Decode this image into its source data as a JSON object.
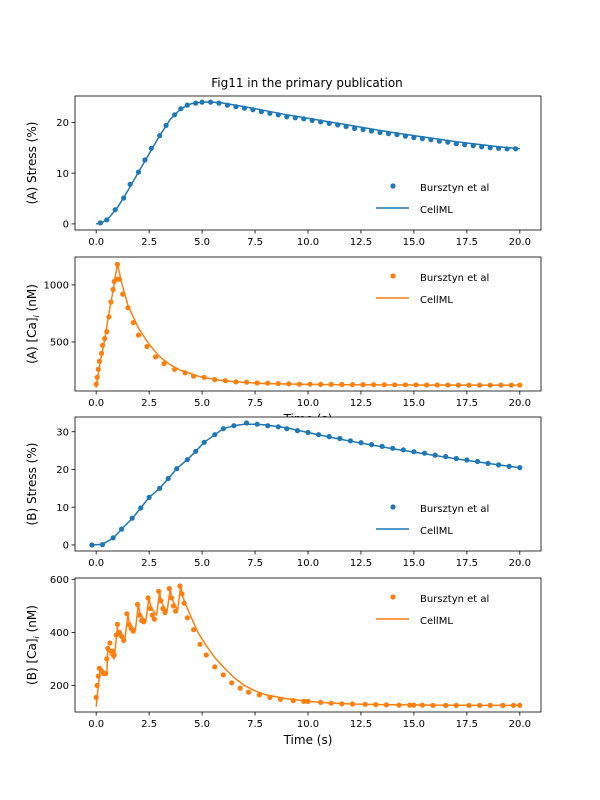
{
  "title": "Fig11 in the primary publication",
  "colors": {
    "blue": "#1f77b4",
    "orange": "#ff7f0e"
  },
  "chart_data": [
    {
      "type": "line",
      "id": "A-stress",
      "title": "Fig11 in the primary publication",
      "ylabel": "(A) Stress (%)",
      "xlabel": "",
      "xlim": [
        -1.0,
        21.0
      ],
      "ylim": [
        -1.2,
        25.2
      ],
      "xticks": [
        0.0,
        2.5,
        5.0,
        7.5,
        10.0,
        12.5,
        15.0,
        17.5,
        20.0
      ],
      "xtick_labels": [
        "0.0",
        "2.5",
        "5.0",
        "7.5",
        "10.0",
        "12.5",
        "15.0",
        "17.5",
        "20.0"
      ],
      "yticks": [
        0,
        10,
        20
      ],
      "ytick_labels": [
        "0",
        "10",
        "20"
      ],
      "color": "blue",
      "legend": {
        "position": "lower-right",
        "entries": [
          "Bursztyn et al",
          "CellML"
        ]
      },
      "series": [
        {
          "name": "CellML",
          "kind": "line",
          "x": [
            0.0,
            0.3,
            0.6,
            1.0,
            1.5,
            2.0,
            2.5,
            3.0,
            3.5,
            4.0,
            4.5,
            5.0,
            5.5,
            6.0,
            7.0,
            8.0,
            9.0,
            10.0,
            11.0,
            12.0,
            13.0,
            14.0,
            15.0,
            16.0,
            17.0,
            18.0,
            19.0,
            20.0
          ],
          "y": [
            0.0,
            0.3,
            1.2,
            3.2,
            6.6,
            10.2,
            13.8,
            17.4,
            20.6,
            22.7,
            23.7,
            24.0,
            24.0,
            23.8,
            23.1,
            22.3,
            21.5,
            20.8,
            20.1,
            19.4,
            18.7,
            18.0,
            17.4,
            16.8,
            16.2,
            15.7,
            15.2,
            14.8
          ]
        },
        {
          "name": "Bursztyn et al",
          "kind": "scatter",
          "x": [
            0.2,
            0.5,
            0.9,
            1.3,
            1.6,
            2.0,
            2.3,
            2.6,
            3.0,
            3.3,
            3.7,
            4.0,
            4.3,
            4.7,
            5.0,
            5.4,
            5.8,
            6.2,
            6.6,
            7.0,
            7.4,
            7.8,
            8.2,
            8.6,
            9.0,
            9.4,
            9.8,
            10.2,
            10.6,
            11.0,
            11.4,
            11.8,
            12.2,
            12.6,
            13.0,
            13.4,
            13.8,
            14.2,
            14.6,
            15.0,
            15.4,
            15.8,
            16.2,
            16.6,
            17.0,
            17.4,
            17.8,
            18.2,
            18.6,
            19.0,
            19.4,
            19.8
          ],
          "y": [
            0.2,
            0.8,
            2.8,
            5.1,
            7.8,
            10.2,
            12.6,
            14.9,
            17.4,
            19.4,
            21.5,
            22.7,
            23.4,
            23.8,
            24.0,
            24.0,
            23.8,
            23.4,
            23.1,
            22.8,
            22.5,
            22.1,
            21.8,
            21.5,
            21.1,
            20.9,
            20.7,
            20.4,
            20.1,
            19.8,
            19.5,
            19.2,
            18.8,
            18.6,
            18.3,
            18.0,
            17.8,
            17.6,
            17.3,
            17.0,
            16.8,
            16.6,
            16.3,
            16.1,
            15.8,
            15.6,
            15.4,
            15.2,
            15.0,
            14.9,
            14.8,
            14.8
          ]
        }
      ]
    },
    {
      "type": "line",
      "id": "A-ca",
      "ylabel": "(A) [Ca]_i (nM)",
      "xlabel": "Time (s)",
      "xlim": [
        -1.0,
        21.0
      ],
      "ylim": [
        70,
        1245
      ],
      "xticks": [
        0.0,
        2.5,
        5.0,
        7.5,
        10.0,
        12.5,
        15.0,
        17.5,
        20.0
      ],
      "xtick_labels": [
        "0.0",
        "2.5",
        "5.0",
        "7.5",
        "10.0",
        "12.5",
        "15.0",
        "17.5",
        "20.0"
      ],
      "yticks": [
        500,
        1000
      ],
      "ytick_labels": [
        "500",
        "1000"
      ],
      "color": "orange",
      "legend": {
        "position": "upper-right",
        "entries": [
          "Bursztyn et al",
          "CellML"
        ]
      },
      "series": [
        {
          "name": "CellML",
          "kind": "line",
          "x": [
            0.0,
            0.05,
            0.2,
            0.4,
            0.6,
            0.8,
            1.0,
            1.2,
            1.5,
            2.0,
            2.5,
            3.0,
            3.5,
            4.0,
            5.0,
            6.0,
            7.0,
            8.0,
            10.0,
            12.0,
            15.0,
            18.0,
            20.0
          ],
          "y": [
            100,
            160,
            330,
            520,
            750,
            950,
            1185,
            1020,
            820,
            620,
            480,
            370,
            300,
            250,
            190,
            160,
            145,
            135,
            128,
            125,
            123,
            122,
            122
          ]
        },
        {
          "name": "Bursztyn et al",
          "kind": "scatter",
          "x": [
            0.0,
            0.05,
            0.1,
            0.15,
            0.25,
            0.3,
            0.4,
            0.5,
            0.6,
            0.7,
            0.8,
            0.85,
            0.95,
            1.0,
            1.1,
            1.25,
            1.5,
            1.75,
            2.0,
            2.4,
            2.8,
            3.2,
            3.7,
            4.2,
            4.6,
            5.1,
            5.6,
            6.1,
            6.6,
            7.1,
            7.6,
            8.1,
            8.6,
            9.1,
            9.6,
            10.1,
            10.6,
            11.1,
            11.6,
            12.1,
            12.6,
            13.1,
            13.6,
            14.1,
            14.6,
            15.1,
            15.6,
            16.1,
            16.6,
            17.1,
            17.6,
            18.1,
            18.6,
            19.1,
            19.6,
            20.0
          ],
          "y": [
            130,
            190,
            260,
            330,
            400,
            470,
            530,
            590,
            720,
            850,
            960,
            1030,
            1050,
            1180,
            1050,
            920,
            800,
            670,
            560,
            460,
            370,
            310,
            260,
            230,
            200,
            190,
            170,
            160,
            150,
            148,
            140,
            138,
            135,
            132,
            130,
            130,
            128,
            128,
            127,
            126,
            126,
            125,
            125,
            124,
            124,
            124,
            123,
            123,
            123,
            122,
            122,
            122,
            122,
            122,
            122,
            122
          ]
        }
      ]
    },
    {
      "type": "line",
      "id": "B-stress",
      "ylabel": "(B) Stress (%)",
      "xlabel": "",
      "xlim": [
        -1.0,
        21.0
      ],
      "ylim": [
        -1.6,
        33.9
      ],
      "xticks": [
        0.0,
        2.5,
        5.0,
        7.5,
        10.0,
        12.5,
        15.0,
        17.5,
        20.0
      ],
      "xtick_labels": [
        "0.0",
        "2.5",
        "5.0",
        "7.5",
        "10.0",
        "12.5",
        "15.0",
        "17.5",
        "20.0"
      ],
      "yticks": [
        0,
        10,
        20,
        30
      ],
      "ytick_labels": [
        "0",
        "10",
        "20",
        "30"
      ],
      "color": "blue",
      "legend": {
        "position": "lower-right",
        "entries": [
          "Bursztyn et al",
          "CellML"
        ]
      },
      "series": [
        {
          "name": "CellML",
          "kind": "line",
          "x": [
            -0.2,
            0.3,
            0.8,
            1.2,
            1.7,
            2.1,
            2.5,
            3.0,
            3.4,
            3.8,
            4.3,
            4.7,
            5.1,
            5.6,
            6.0,
            6.5,
            7.0,
            7.5,
            8.0,
            9.0,
            10.0,
            11.0,
            12.0,
            13.0,
            14.0,
            15.0,
            16.0,
            17.0,
            18.0,
            19.0,
            20.0
          ],
          "y": [
            0.0,
            0.2,
            1.8,
            4.2,
            7.0,
            9.8,
            12.6,
            15.0,
            17.6,
            20.2,
            22.6,
            24.8,
            27.2,
            29.2,
            30.8,
            31.6,
            32.0,
            32.0,
            31.8,
            31.0,
            29.8,
            28.6,
            27.5,
            26.5,
            25.5,
            24.6,
            23.7,
            22.8,
            22.0,
            21.2,
            20.5
          ]
        },
        {
          "name": "Bursztyn et al",
          "kind": "scatter",
          "x": [
            -0.2,
            0.3,
            0.8,
            1.2,
            1.7,
            2.1,
            2.5,
            3.0,
            3.4,
            3.8,
            4.3,
            4.7,
            5.1,
            5.6,
            6.0,
            6.5,
            7.1,
            7.6,
            8.1,
            8.6,
            9.0,
            9.5,
            10.0,
            10.5,
            11.0,
            11.5,
            12.0,
            12.5,
            13.0,
            13.5,
            14.0,
            14.5,
            15.0,
            15.5,
            16.0,
            16.5,
            17.0,
            17.5,
            18.0,
            18.5,
            19.0,
            19.5,
            20.0
          ],
          "y": [
            0.0,
            0.1,
            1.9,
            4.2,
            7.1,
            9.8,
            12.6,
            15.0,
            17.6,
            20.2,
            22.6,
            24.8,
            27.2,
            29.2,
            30.8,
            31.6,
            32.3,
            32.0,
            31.6,
            31.3,
            30.8,
            30.3,
            29.8,
            29.2,
            28.7,
            28.2,
            27.6,
            27.1,
            26.6,
            26.1,
            25.6,
            25.2,
            24.7,
            24.3,
            23.8,
            23.4,
            22.9,
            22.5,
            22.1,
            21.6,
            21.2,
            20.8,
            20.5
          ]
        }
      ]
    },
    {
      "type": "line",
      "id": "B-ca",
      "ylabel": "(B) [Ca]_i (nM)",
      "xlabel": "Time (s)",
      "xlim": [
        -1.0,
        21.0
      ],
      "ylim": [
        100,
        605
      ],
      "xticks": [
        0.0,
        2.5,
        5.0,
        7.5,
        10.0,
        12.5,
        15.0,
        17.5,
        20.0
      ],
      "xtick_labels": [
        "0.0",
        "2.5",
        "5.0",
        "7.5",
        "10.0",
        "12.5",
        "15.0",
        "17.5",
        "20.0"
      ],
      "yticks": [
        200,
        400,
        600
      ],
      "ytick_labels": [
        "200",
        "400",
        "600"
      ],
      "color": "orange",
      "legend": {
        "position": "upper-right",
        "entries": [
          "Bursztyn et al",
          "CellML"
        ]
      },
      "series": [
        {
          "name": "CellML",
          "kind": "line",
          "x": [
            0.0,
            0.1,
            0.2,
            0.35,
            0.5,
            0.55,
            0.7,
            0.85,
            1.0,
            1.05,
            1.2,
            1.35,
            1.5,
            1.55,
            1.7,
            1.85,
            2.0,
            2.05,
            2.2,
            2.35,
            2.5,
            2.55,
            2.7,
            2.85,
            3.0,
            3.05,
            3.2,
            3.35,
            3.5,
            3.55,
            3.7,
            3.85,
            4.0,
            4.05,
            4.2,
            4.5,
            4.8,
            5.2,
            5.6,
            6.0,
            6.5,
            7.0,
            7.5,
            8.0,
            9.0,
            10.0,
            11.0,
            12.0,
            14.0,
            16.0,
            18.0,
            20.0
          ],
          "y": [
            120,
            200,
            265,
            250,
            240,
            340,
            315,
            300,
            420,
            395,
            380,
            370,
            470,
            440,
            420,
            410,
            510,
            475,
            455,
            445,
            535,
            505,
            480,
            465,
            555,
            520,
            495,
            480,
            565,
            535,
            505,
            485,
            580,
            545,
            510,
            455,
            400,
            350,
            305,
            270,
            230,
            200,
            180,
            165,
            150,
            140,
            134,
            130,
            127,
            126,
            125,
            125
          ]
        },
        {
          "name": "Bursztyn et al",
          "kind": "scatter",
          "x": [
            0.0,
            0.05,
            0.1,
            0.15,
            0.25,
            0.35,
            0.45,
            0.5,
            0.55,
            0.65,
            0.75,
            0.85,
            0.95,
            1.0,
            1.1,
            1.2,
            1.3,
            1.45,
            1.55,
            1.65,
            1.75,
            1.95,
            2.05,
            2.15,
            2.25,
            2.45,
            2.55,
            2.65,
            2.75,
            2.95,
            3.05,
            3.15,
            3.25,
            3.45,
            3.55,
            3.65,
            3.75,
            3.95,
            4.05,
            4.15,
            4.3,
            4.6,
            4.9,
            5.2,
            5.6,
            6.0,
            6.4,
            6.8,
            7.2,
            7.7,
            8.2,
            8.7,
            9.3,
            9.8,
            10.0,
            10.6,
            11.1,
            11.6,
            12.1,
            12.7,
            13.2,
            13.7,
            14.3,
            14.8,
            15.0,
            15.4,
            15.9,
            16.5,
            17.0,
            17.6,
            18.1,
            18.6,
            19.2,
            19.7,
            20.0
          ],
          "y": [
            155,
            200,
            235,
            265,
            255,
            245,
            245,
            300,
            340,
            360,
            330,
            315,
            390,
            430,
            400,
            385,
            370,
            470,
            430,
            415,
            405,
            505,
            465,
            445,
            440,
            530,
            490,
            465,
            450,
            555,
            520,
            490,
            475,
            565,
            530,
            500,
            480,
            575,
            545,
            510,
            455,
            410,
            355,
            315,
            270,
            240,
            210,
            190,
            175,
            165,
            155,
            148,
            143,
            140,
            140,
            136,
            133,
            131,
            130,
            129,
            128,
            127,
            126,
            126,
            126,
            126,
            125,
            125,
            125,
            125,
            125,
            125,
            125,
            125,
            125
          ]
        }
      ]
    }
  ]
}
